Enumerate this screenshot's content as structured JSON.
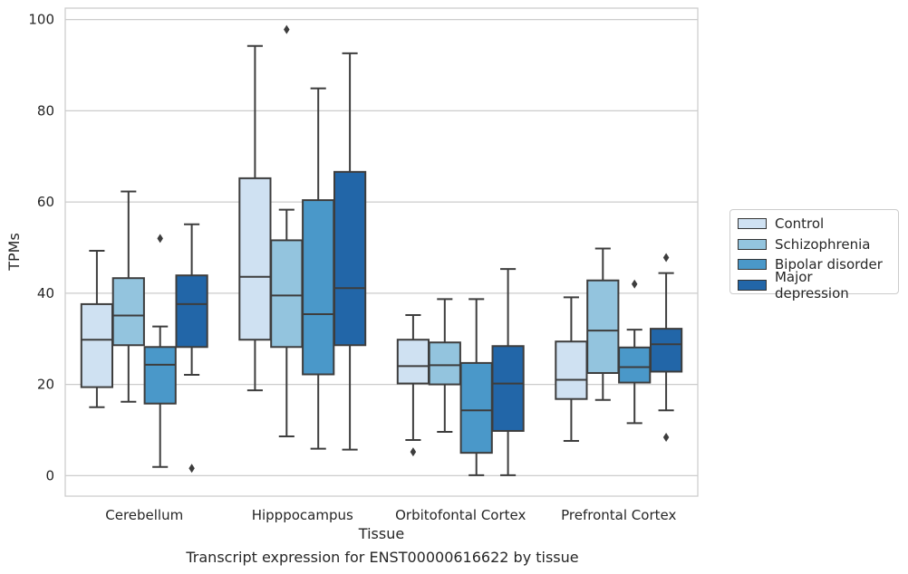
{
  "chart_data": {
    "type": "box",
    "caption": "Transcript expression for ENST00000616622 by tissue",
    "xlabel": "Tissue",
    "ylabel": "TPMs",
    "ylim": [
      -4.5,
      102.5
    ],
    "yticks": [
      0,
      20,
      40,
      60,
      80,
      100
    ],
    "grid": true,
    "legend_placement": "right",
    "categories": [
      "Cerebellum",
      "Hipppocampus",
      "Orbitofontal Cortex",
      "Prefrontal Cortex"
    ],
    "series": [
      {
        "name": "Control",
        "color": "#cfe1f2",
        "boxes": [
          {
            "whisker_low": 15,
            "q1": 19.4,
            "median": 29.8,
            "q3": 37.6,
            "whisker_high": 49.3,
            "outliers": []
          },
          {
            "whisker_low": 18.7,
            "q1": 29.8,
            "median": 43.6,
            "q3": 65.2,
            "whisker_high": 94.2,
            "outliers": []
          },
          {
            "whisker_low": 7.8,
            "q1": 20.2,
            "median": 24,
            "q3": 29.8,
            "whisker_high": 35.2,
            "outliers": [
              5.2
            ]
          },
          {
            "whisker_low": 7.6,
            "q1": 16.8,
            "median": 21,
            "q3": 29.4,
            "whisker_high": 39.1,
            "outliers": []
          }
        ]
      },
      {
        "name": "Schizophrenia",
        "color": "#93c4de",
        "boxes": [
          {
            "whisker_low": 16.2,
            "q1": 28.6,
            "median": 35.1,
            "q3": 43.3,
            "whisker_high": 62.3,
            "outliers": []
          },
          {
            "whisker_low": 8.6,
            "q1": 28.2,
            "median": 39.5,
            "q3": 51.6,
            "whisker_high": 58.3,
            "outliers": [
              97.8
            ]
          },
          {
            "whisker_low": 9.6,
            "q1": 20,
            "median": 24.2,
            "q3": 29.2,
            "whisker_high": 38.7,
            "outliers": []
          },
          {
            "whisker_low": 16.6,
            "q1": 22.5,
            "median": 31.8,
            "q3": 42.8,
            "whisker_high": 49.8,
            "outliers": []
          }
        ]
      },
      {
        "name": "Bipolar disorder",
        "color": "#4a98c9",
        "boxes": [
          {
            "whisker_low": 1.9,
            "q1": 15.8,
            "median": 24.3,
            "q3": 28.2,
            "whisker_high": 32.7,
            "outliers": [
              52
            ]
          },
          {
            "whisker_low": 5.9,
            "q1": 22.2,
            "median": 35.4,
            "q3": 60.4,
            "whisker_high": 84.9,
            "outliers": []
          },
          {
            "whisker_low": 0.1,
            "q1": 5,
            "median": 14.3,
            "q3": 24.7,
            "whisker_high": 38.7,
            "outliers": []
          },
          {
            "whisker_low": 11.5,
            "q1": 20.4,
            "median": 23.8,
            "q3": 28.1,
            "whisker_high": 32,
            "outliers": [
              42
            ]
          }
        ]
      },
      {
        "name": "Major depression",
        "color": "#2266a8",
        "boxes": [
          {
            "whisker_low": 22.1,
            "q1": 28.2,
            "median": 37.6,
            "q3": 43.9,
            "whisker_high": 55.1,
            "outliers": [
              1.6
            ]
          },
          {
            "whisker_low": 5.7,
            "q1": 28.6,
            "median": 41.1,
            "q3": 66.6,
            "whisker_high": 92.6,
            "outliers": []
          },
          {
            "whisker_low": 0.1,
            "q1": 9.8,
            "median": 20.2,
            "q3": 28.4,
            "whisker_high": 45.3,
            "outliers": []
          },
          {
            "whisker_low": 14.3,
            "q1": 22.8,
            "median": 28.8,
            "q3": 32.2,
            "whisker_high": 44.4,
            "outliers": [
              47.8,
              8.4
            ]
          }
        ]
      }
    ]
  }
}
